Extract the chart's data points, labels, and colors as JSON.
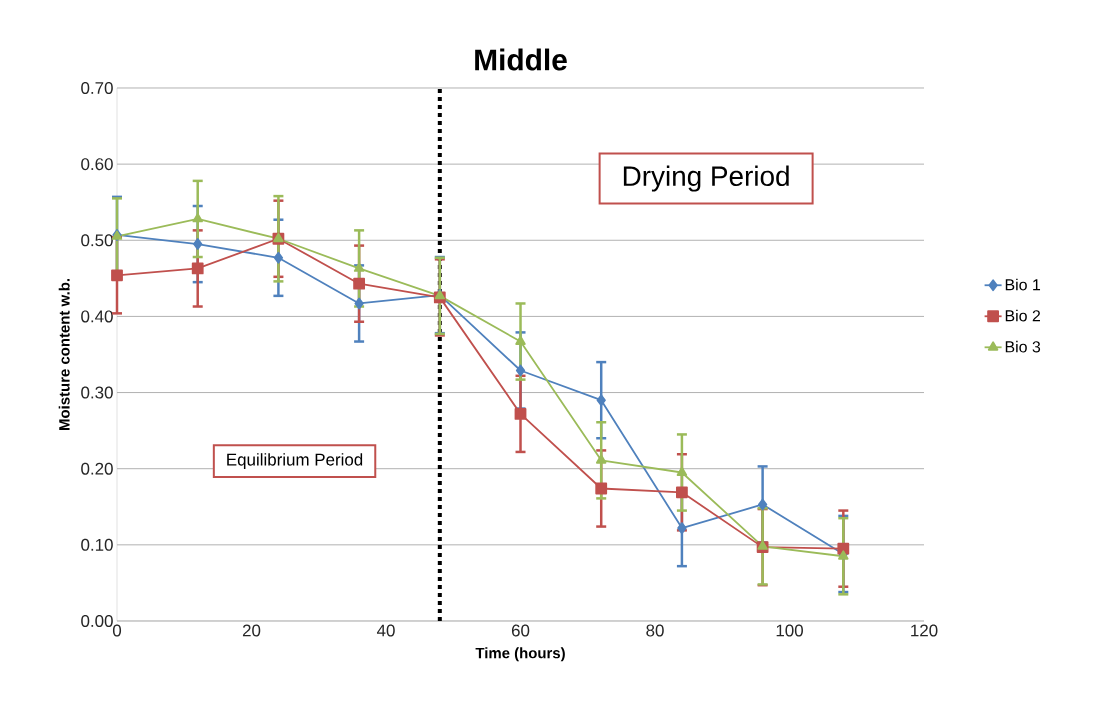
{
  "chart_data": {
    "type": "line",
    "title": "Middle",
    "xlabel": "Time (hours)",
    "ylabel": "Moisture content w.b.",
    "x": [
      0,
      12,
      24,
      36,
      48,
      60,
      72,
      84,
      96,
      108
    ],
    "series": [
      {
        "name": "Bio 1",
        "color": "#4f81bd",
        "marker": "diamond",
        "values": [
          0.507,
          0.495,
          0.477,
          0.417,
          0.428,
          0.329,
          0.29,
          0.122,
          0.153,
          0.088
        ],
        "errors": [
          0.05,
          0.05,
          0.05,
          0.05,
          0.05,
          0.05,
          0.05,
          0.05,
          0.05,
          0.05
        ]
      },
      {
        "name": "Bio 2",
        "color": "#c0504d",
        "marker": "square",
        "values": [
          0.454,
          0.463,
          0.502,
          0.443,
          0.425,
          0.272,
          0.174,
          0.169,
          0.097,
          0.095
        ],
        "errors": [
          0.05,
          0.05,
          0.05,
          0.05,
          0.05,
          0.05,
          0.05,
          0.05,
          0.05,
          0.05
        ]
      },
      {
        "name": "Bio 3",
        "color": "#9bbb59",
        "marker": "triangle",
        "values": [
          0.505,
          0.528,
          0.502,
          0.463,
          0.427,
          0.367,
          0.211,
          0.195,
          0.098,
          0.085
        ],
        "errors": [
          0.05,
          0.05,
          0.056,
          0.05,
          0.05,
          0.05,
          0.05,
          0.05,
          0.05,
          0.05
        ]
      }
    ],
    "xlim": [
      0,
      120
    ],
    "xticks": [
      0,
      20,
      40,
      60,
      80,
      100,
      120
    ],
    "ylim": [
      0,
      0.7
    ],
    "yticks": [
      {
        "value": 0,
        "label": "0.00"
      },
      {
        "value": 0.1,
        "label": "0.10"
      },
      {
        "value": 0.2,
        "label": "0.20"
      },
      {
        "value": 0.3,
        "label": "0.30"
      },
      {
        "value": 0.4,
        "label": "0.40"
      },
      {
        "value": 0.5,
        "label": "0.50"
      },
      {
        "value": 0.6,
        "label": "0.60"
      },
      {
        "value": 0.7,
        "label": "0.70"
      }
    ],
    "grid": "y",
    "legend": "right",
    "ref_lines": [
      {
        "axis": "x",
        "value": 48,
        "color": "#000000",
        "line_style": "dotted"
      }
    ],
    "annotations": [
      "Drying Period",
      "Equilibrium Period"
    ]
  }
}
